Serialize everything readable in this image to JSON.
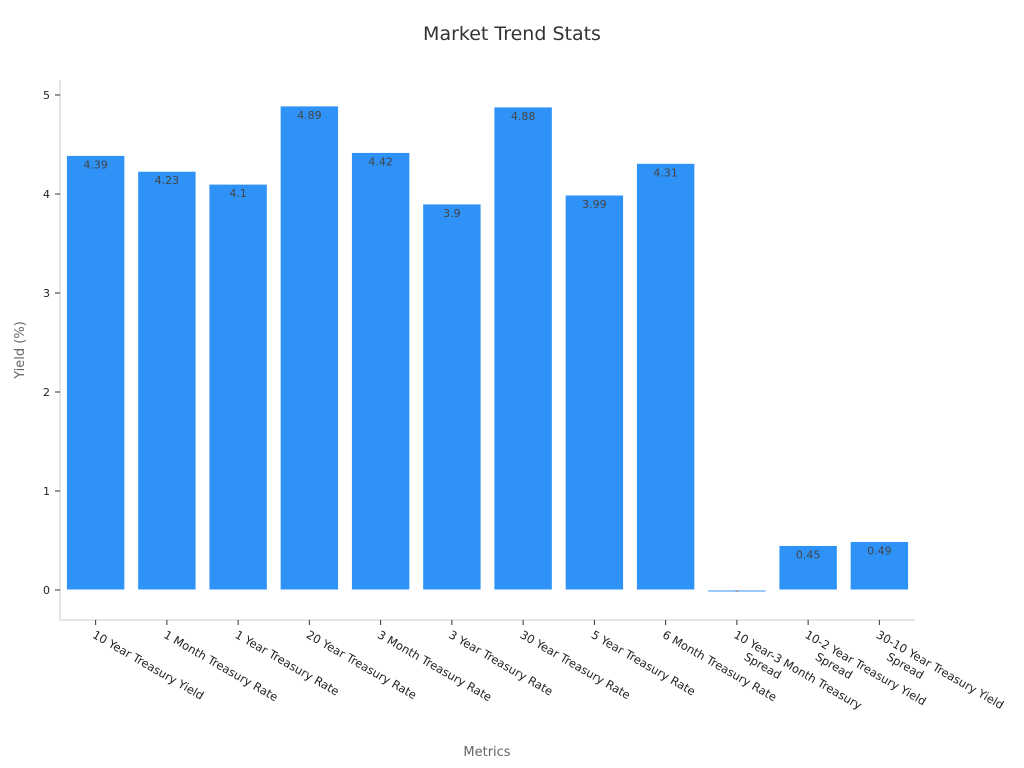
{
  "chart_data": {
    "type": "bar",
    "title": "Market Trend Stats",
    "xlabel": "Metrics",
    "ylabel": "Yield (%)",
    "ylim": [
      -0.3,
      5.15
    ],
    "yticks": [
      0,
      1,
      2,
      3,
      4,
      5
    ],
    "categories": [
      "10 Year Treasury Yield",
      "1 Month Treasury Rate",
      "1 Year Treasury Rate",
      "20 Year Treasury Rate",
      "3 Month Treasury Rate",
      "3 Year Treasury Rate",
      "30 Year Treasury Rate",
      "5 Year Treasury Rate",
      "6 Month Treasury Rate",
      "10 Year-3 Month Treasury Spread",
      "10-2 Year Treasury Yield Spread",
      "30-10 Year Treasury Yield Spread"
    ],
    "category_lines": [
      [
        "10 Year Treasury Yield"
      ],
      [
        "1 Month Treasury Rate"
      ],
      [
        "1 Year Treasury Rate"
      ],
      [
        "20 Year Treasury Rate"
      ],
      [
        "3 Month Treasury Rate"
      ],
      [
        "3 Year Treasury Rate"
      ],
      [
        "30 Year Treasury Rate"
      ],
      [
        "5 Year Treasury Rate"
      ],
      [
        "6 Month Treasury Rate"
      ],
      [
        "10 Year-3 Month Treasury",
        "Spread"
      ],
      [
        "10-2 Year Treasury Yield",
        "Spread"
      ],
      [
        "30-10 Year Treasury Yield",
        "Spread"
      ]
    ],
    "values": [
      4.39,
      4.23,
      4.1,
      4.89,
      4.42,
      3.9,
      4.88,
      3.99,
      4.31,
      -0.02,
      0.45,
      0.49
    ],
    "data_labels": [
      "4.39",
      "4.23",
      "4.1",
      "4.89",
      "4.42",
      "3.9",
      "4.88",
      "3.99",
      "4.31",
      "-",
      "0.45",
      "0.49"
    ],
    "bar_color": "#2f92f7",
    "bar_edge_color": "#ffffff",
    "grid": false,
    "legend": "none"
  }
}
